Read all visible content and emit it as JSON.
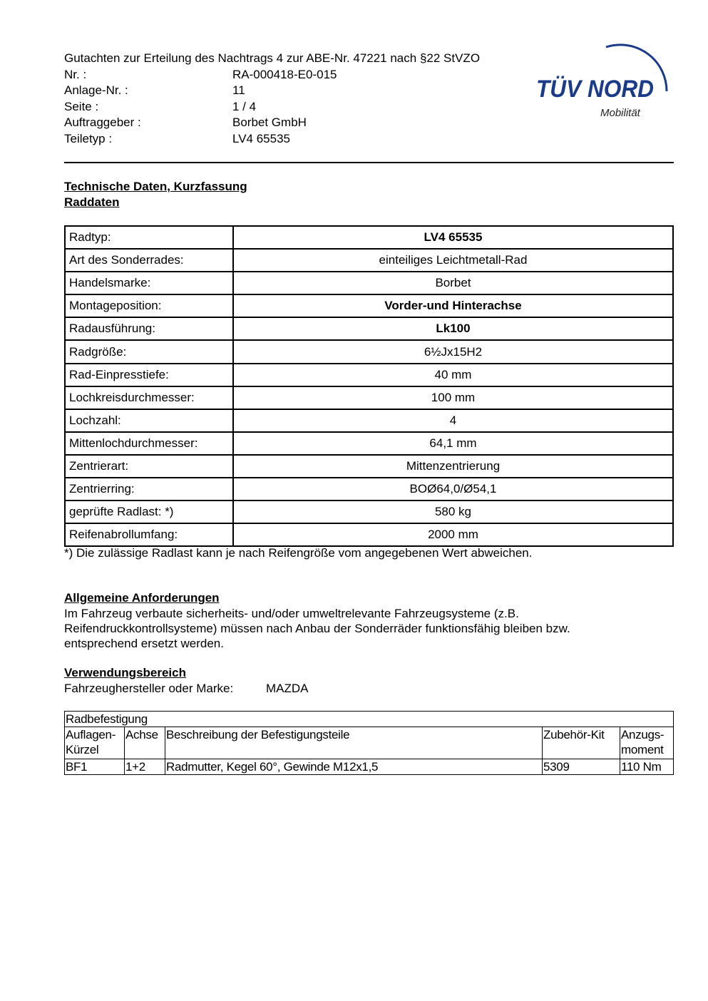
{
  "header": {
    "title": "Gutachten zur Erteilung des Nachtrags 4 zur ABE-Nr. 47221 nach §22 StVZO",
    "fields": [
      {
        "k": "Nr. :",
        "v": "RA-000418-E0-015"
      },
      {
        "k": "Anlage-Nr. :",
        "v": "11"
      },
      {
        "k": "Seite :",
        "v": "1 / 4"
      },
      {
        "k": "Auftraggeber :",
        "v": "Borbet GmbH"
      },
      {
        "k": "Teiletyp :",
        "v": "LV4 65535"
      }
    ]
  },
  "logo": {
    "brand": "TÜV NORD",
    "sub": "Mobilität",
    "color": "#1a3a8a"
  },
  "section1": {
    "title": "Technische Daten, Kurzfassung",
    "subtitle": "Raddaten"
  },
  "wheel_table": [
    {
      "k": "Radtyp:",
      "v": "LV4 65535",
      "bold": true
    },
    {
      "k": "Art des Sonderrades:",
      "v": "einteiliges Leichtmetall-Rad"
    },
    {
      "k": "Handelsmarke:",
      "v": "Borbet"
    },
    {
      "k": "Montageposition:",
      "v": "Vorder-und Hinterachse",
      "bold": true
    },
    {
      "k": "Radausführung:",
      "v": "Lk100",
      "bold": true
    },
    {
      "k": "Radgröße:",
      "v": "6½Jx15H2"
    },
    {
      "k": "Rad-Einpresstiefe:",
      "v": "40 mm"
    },
    {
      "k": "Lochkreisdurchmesser:",
      "v": "100 mm"
    },
    {
      "k": "Lochzahl:",
      "v": "4"
    },
    {
      "k": "Mittenlochdurchmesser:",
      "v": "64,1 mm"
    },
    {
      "k": "Zentrierart:",
      "v": "Mittenzentrierung"
    },
    {
      "k": "Zentrierring:",
      "v": "BOØ64,0/Ø54,1"
    },
    {
      "k": "geprüfte Radlast: *)",
      "v": "580 kg"
    },
    {
      "k": "Reifenabrollumfang:",
      "v": "2000 mm"
    }
  ],
  "footnote": "*) Die zulässige Radlast kann je nach Reifengröße vom angegebenen Wert abweichen.",
  "general": {
    "title": "Allgemeine Anforderungen",
    "lines": [
      "Im Fahrzeug verbaute sicherheits- und/oder umweltrelevante Fahrzeugsysteme (z.B.",
      "Reifendruckkontrollsysteme) müssen nach Anbau der Sonderräder funktionsfähig bleiben bzw.",
      "entsprechend ersetzt werden."
    ]
  },
  "usage": {
    "title": "Verwendungsbereich",
    "label": "Fahrzeughersteller oder Marke:",
    "value": "MAZDA"
  },
  "fixing": {
    "title": "Radbefestigung",
    "headers": [
      "Auflagen-\nKürzel",
      "Achse",
      "Beschreibung der Befestigungsteile",
      "Zubehör-Kit",
      "Anzugs-\nmoment"
    ],
    "rows": [
      [
        "BF1",
        "1+2",
        "Radmutter, Kegel 60°, Gewinde M12x1,5",
        "5309",
        "110 Nm"
      ]
    ]
  }
}
